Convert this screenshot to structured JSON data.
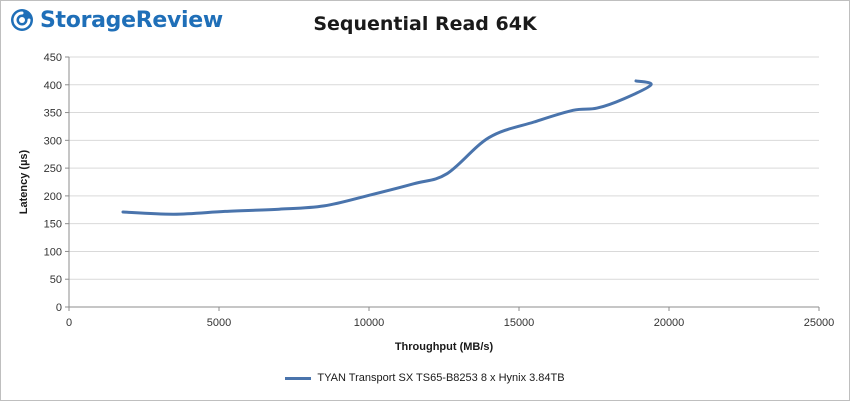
{
  "brand": {
    "name": "StorageReview",
    "color": "#1f6fb8",
    "icon": "storagereview-logo-icon"
  },
  "chart_data": {
    "type": "line",
    "title": "Sequential Read 64K",
    "xlabel": "Throughput (MB/s)",
    "ylabel": "Latency (µs)",
    "xlim": [
      0,
      25000
    ],
    "ylim": [
      0,
      450
    ],
    "xticks": [
      0,
      5000,
      10000,
      15000,
      20000,
      25000
    ],
    "yticks": [
      0,
      50,
      100,
      150,
      200,
      250,
      300,
      350,
      400,
      450
    ],
    "grid": "horizontal",
    "legend_position": "bottom",
    "series": [
      {
        "name": "TYAN Transport SX TS65-B8253 8 x Hynix 3.84TB",
        "color": "#4a74ac",
        "x": [
          1800,
          3500,
          5200,
          7000,
          8500,
          10000,
          11500,
          12600,
          14000,
          15500,
          16800,
          17600,
          18500,
          19400,
          18900
        ],
        "y": [
          171,
          167,
          172,
          176,
          182,
          201,
          222,
          240,
          305,
          333,
          354,
          358,
          375,
          400,
          407
        ]
      }
    ]
  }
}
